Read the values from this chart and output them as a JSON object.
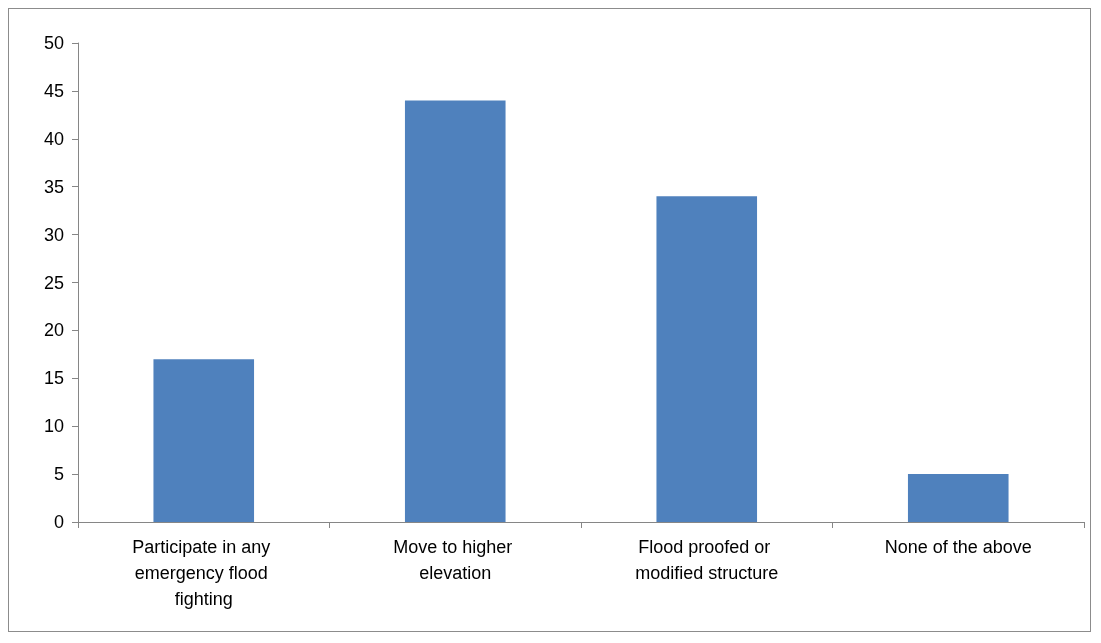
{
  "chart_data": {
    "type": "bar",
    "categories": [
      "Participate in any emergency flood fighting",
      "Move to higher elevation",
      "Flood proofed or modified structure",
      "None of the above"
    ],
    "values": [
      17,
      44,
      34,
      5
    ],
    "color": "#4f81bd",
    "ylim": [
      0,
      50
    ],
    "yticks": [
      0,
      5,
      10,
      15,
      20,
      25,
      30,
      35,
      40,
      45,
      50
    ],
    "grid": false
  }
}
